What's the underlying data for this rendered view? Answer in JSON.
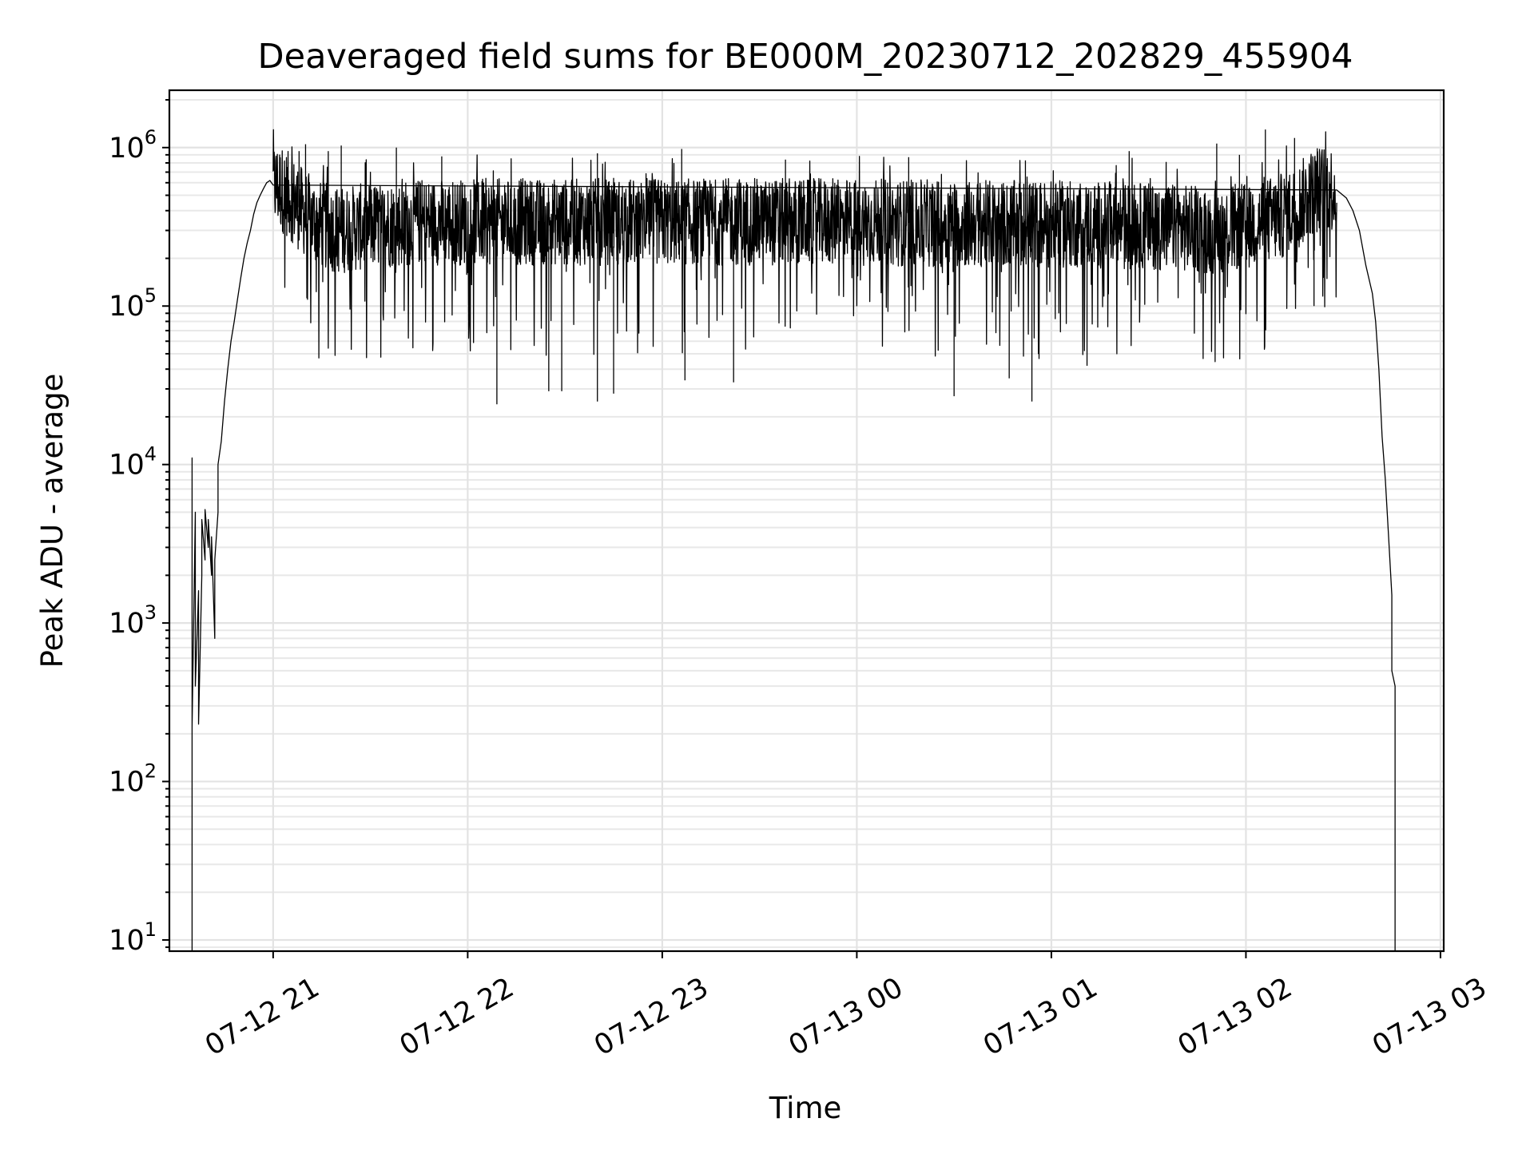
{
  "chart_data": {
    "type": "line",
    "title": "Deaveraged field sums for BE000M_20230712_202829_455904",
    "xlabel": "Time",
    "ylabel": "Peak ADU - average",
    "yscale": "log",
    "grid": true,
    "xlim": [
      "2023-07-12 20:28",
      "2023-07-13 03:01"
    ],
    "ylim": [
      8.5,
      2300000
    ],
    "x_ticks": [
      {
        "t": "2023-07-12 21:00",
        "label": "07-12 21"
      },
      {
        "t": "2023-07-12 22:00",
        "label": "07-12 22"
      },
      {
        "t": "2023-07-12 23:00",
        "label": "07-12 23"
      },
      {
        "t": "2023-07-13 00:00",
        "label": "07-13 00"
      },
      {
        "t": "2023-07-13 01:00",
        "label": "07-13 01"
      },
      {
        "t": "2023-07-13 02:00",
        "label": "07-13 02"
      },
      {
        "t": "2023-07-13 03:00",
        "label": "07-13 03"
      }
    ],
    "y_ticks": [
      {
        "value": 10,
        "base": "10",
        "exp": "1"
      },
      {
        "value": 100,
        "base": "10",
        "exp": "2"
      },
      {
        "value": 1000,
        "base": "10",
        "exp": "3"
      },
      {
        "value": 10000,
        "base": "10",
        "exp": "4"
      },
      {
        "value": 100000,
        "base": "10",
        "exp": "5"
      },
      {
        "value": 1000000,
        "base": "10",
        "exp": "6"
      }
    ],
    "series": [
      {
        "points": [
          [
            "2023-07-12 20:35",
            8.5
          ],
          [
            "2023-07-12 20:35",
            11000
          ],
          [
            "2023-07-12 20:35",
            220
          ],
          [
            "2023-07-12 20:36",
            5000
          ],
          [
            "2023-07-12 20:36",
            400
          ],
          [
            "2023-07-12 20:37",
            1600
          ],
          [
            "2023-07-12 20:37",
            230
          ],
          [
            "2023-07-12 20:38",
            2000
          ],
          [
            "2023-07-12 20:38",
            4500
          ],
          [
            "2023-07-12 20:39",
            2500
          ],
          [
            "2023-07-12 20:39",
            5200
          ],
          [
            "2023-07-12 20:40",
            3000
          ],
          [
            "2023-07-12 20:40",
            4500
          ],
          [
            "2023-07-12 20:41",
            2000
          ],
          [
            "2023-07-12 20:41",
            3500
          ],
          [
            "2023-07-12 20:42",
            800
          ],
          [
            "2023-07-12 20:42",
            2500
          ],
          [
            "2023-07-12 20:43",
            5000
          ],
          [
            "2023-07-12 20:43",
            10000
          ],
          [
            "2023-07-12 20:44",
            14000
          ],
          [
            "2023-07-12 20:45",
            25000
          ],
          [
            "2023-07-12 20:46",
            40000
          ],
          [
            "2023-07-12 20:47",
            60000
          ],
          [
            "2023-07-12 20:48",
            80000
          ],
          [
            "2023-07-12 20:49",
            110000
          ],
          [
            "2023-07-12 20:50",
            150000
          ],
          [
            "2023-07-12 20:51",
            200000
          ],
          [
            "2023-07-12 20:52",
            250000
          ],
          [
            "2023-07-12 20:53",
            300000
          ],
          [
            "2023-07-12 20:54",
            380000
          ],
          [
            "2023-07-12 20:55",
            450000
          ],
          [
            "2023-07-12 20:56",
            500000
          ],
          [
            "2023-07-12 20:57",
            550000
          ],
          [
            "2023-07-12 20:58",
            600000
          ],
          [
            "2023-07-12 20:59",
            620000
          ],
          [
            "2023-07-12 21:00",
            580000
          ],
          [
            "2023-07-12 21:02",
            560000
          ],
          [
            "2023-07-12 21:04",
            520000
          ],
          [
            "2023-07-12 21:06",
            470000
          ],
          [
            "2023-07-12 21:08",
            420000
          ],
          [
            "2023-07-12 21:10",
            380000
          ],
          [
            "2023-07-12 21:14",
            330000
          ],
          [
            "2023-07-12 21:20",
            300000
          ],
          [
            "2023-07-12 21:30",
            320000
          ],
          [
            "2023-07-12 21:45",
            340000
          ],
          [
            "2023-07-12 22:00",
            340000
          ],
          [
            "2023-07-12 22:30",
            340000
          ],
          [
            "2023-07-12 23:00",
            340000
          ],
          [
            "2023-07-12 23:30",
            340000
          ],
          [
            "2023-07-13 00:00",
            340000
          ],
          [
            "2023-07-13 00:30",
            330000
          ],
          [
            "2023-07-13 01:00",
            330000
          ],
          [
            "2023-07-13 01:30",
            320000
          ],
          [
            "2023-07-13 01:50",
            300000
          ],
          [
            "2023-07-13 02:00",
            320000
          ],
          [
            "2023-07-13 02:10",
            360000
          ],
          [
            "2023-07-13 02:16",
            420000
          ],
          [
            "2023-07-13 02:20",
            520000
          ],
          [
            "2023-07-13 02:24",
            560000
          ],
          [
            "2023-07-13 02:28",
            540000
          ],
          [
            "2023-07-13 02:31",
            480000
          ],
          [
            "2023-07-13 02:33",
            400000
          ],
          [
            "2023-07-13 02:35",
            300000
          ],
          [
            "2023-07-13 02:37",
            180000
          ],
          [
            "2023-07-13 02:39",
            120000
          ],
          [
            "2023-07-13 02:40",
            80000
          ],
          [
            "2023-07-13 02:41",
            40000
          ],
          [
            "2023-07-13 02:42",
            15000
          ],
          [
            "2023-07-13 02:43",
            8000
          ],
          [
            "2023-07-13 02:44",
            3500
          ],
          [
            "2023-07-13 02:45",
            1500
          ],
          [
            "2023-07-13 02:45",
            500
          ],
          [
            "2023-07-13 02:46",
            400
          ],
          [
            "2023-07-13 02:46",
            15
          ],
          [
            "2023-07-13 02:46",
            8.5
          ]
        ],
        "spikes": [
          [
            "2023-07-12 21:08",
            950000
          ],
          [
            "2023-07-12 21:10",
            1050000
          ],
          [
            "2023-07-12 21:17",
            950000
          ],
          [
            "2023-07-12 21:21",
            1030000
          ],
          [
            "2023-07-12 21:38",
            1000000
          ],
          [
            "2023-07-12 21:52",
            880000
          ],
          [
            "2023-07-12 22:40",
            920000
          ],
          [
            "2023-07-12 23:06",
            980000
          ],
          [
            "2023-07-12 23:38",
            840000
          ],
          [
            "2023-07-13 00:16",
            870000
          ],
          [
            "2023-07-13 00:52",
            830000
          ],
          [
            "2023-07-13 01:24",
            950000
          ],
          [
            "2023-07-13 01:51",
            1060000
          ],
          [
            "2023-07-13 01:58",
            900000
          ],
          [
            "2023-07-13 02:06",
            1300000
          ],
          [
            "2023-07-13 02:15",
            1150000
          ],
          [
            "2023-07-13 02:22",
            990000
          ]
        ],
        "dips": [
          [
            "2023-07-12 22:09",
            24000
          ],
          [
            "2023-07-12 22:25",
            29000
          ],
          [
            "2023-07-12 22:29",
            29000
          ],
          [
            "2023-07-12 22:40",
            25000
          ],
          [
            "2023-07-12 22:45",
            28000
          ],
          [
            "2023-07-12 23:07",
            34000
          ],
          [
            "2023-07-12 23:22",
            33000
          ],
          [
            "2023-07-13 00:30",
            27000
          ],
          [
            "2023-07-13 00:54",
            25000
          ],
          [
            "2023-07-13 00:47",
            35000
          ],
          [
            "2023-07-13 01:11",
            42000
          ],
          [
            "2023-07-13 02:21",
            100000
          ]
        ]
      }
    ]
  }
}
